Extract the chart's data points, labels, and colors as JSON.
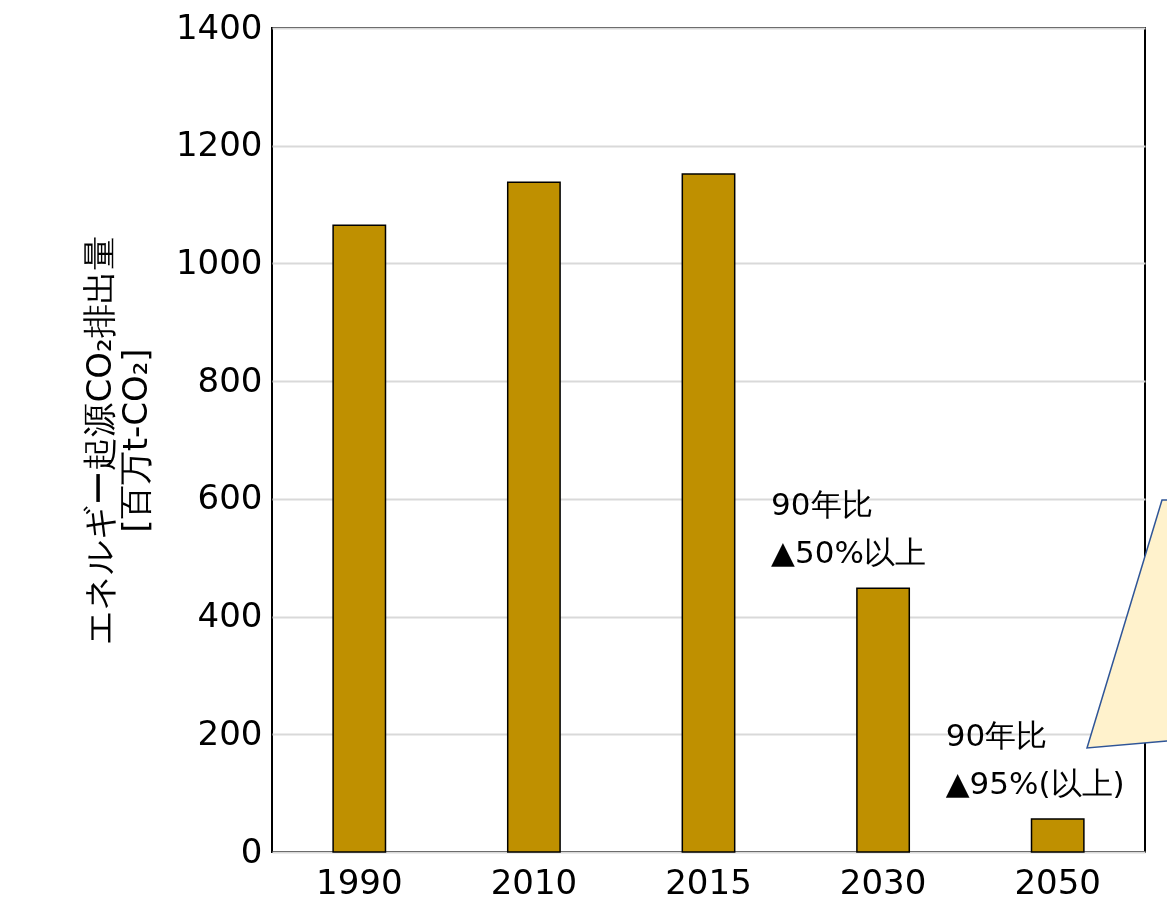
{
  "chart_data": {
    "type": "bar",
    "ylabel": "エネルギー起源CO₂排出量\n[百万t-CO₂]",
    "categories": [
      "1990",
      "2010",
      "2015",
      "2030",
      "2050"
    ],
    "values": [
      1065,
      1138,
      1152,
      448,
      56
    ],
    "color": "#bf9000",
    "ylim": [
      0,
      1400
    ],
    "yticks": [
      0,
      200,
      400,
      600,
      800,
      1000,
      1200,
      1400
    ],
    "grid": "y",
    "annotations": [
      {
        "text": "90年比\n▲50%以上",
        "x": "2030",
        "y": 448
      },
      {
        "text": "90年比\n▲95%(以上)",
        "x": "2050",
        "y": 56
      }
    ]
  }
}
